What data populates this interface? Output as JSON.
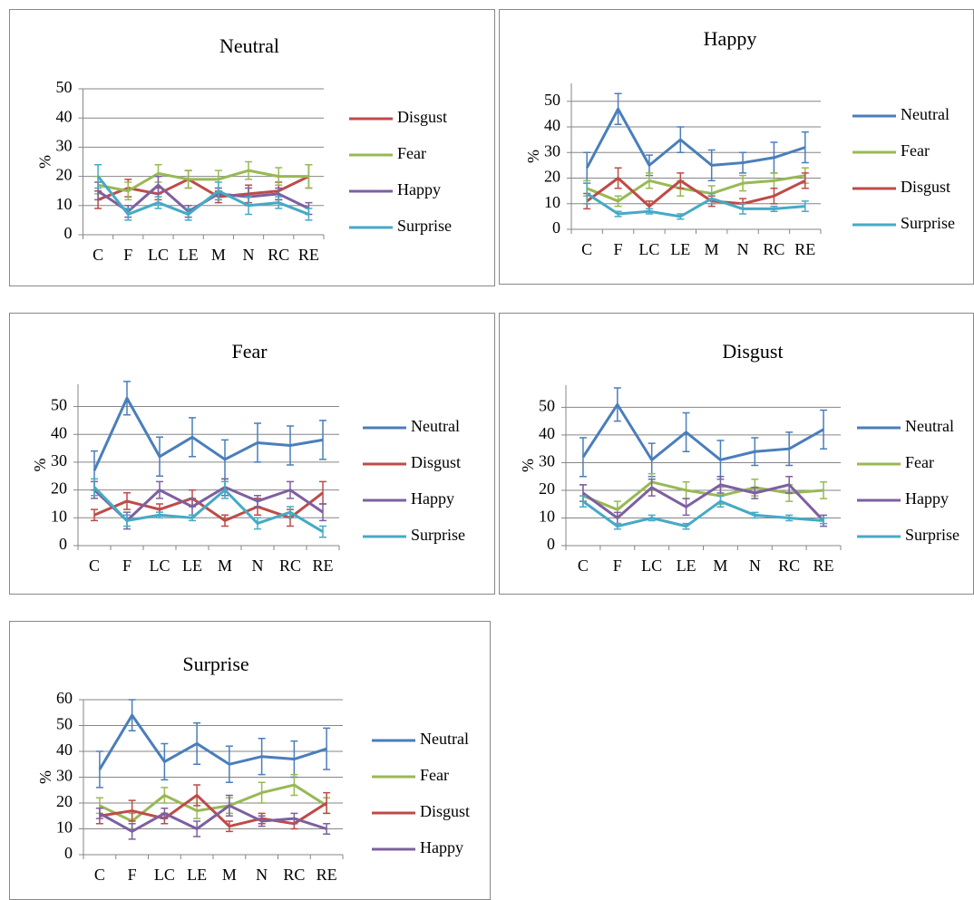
{
  "chart_data": [
    {
      "type": "line",
      "title": "Neutral",
      "ylabel": "%",
      "categories": [
        "C",
        "F",
        "LC",
        "LE",
        "M",
        "N",
        "RC",
        "RE"
      ],
      "ylim": [
        0,
        50
      ],
      "yticks": [
        0,
        10,
        20,
        30,
        40,
        50
      ],
      "grid": true,
      "series": [
        {
          "name": "Disgust",
          "color": "#be4b48",
          "values": [
            12,
            16,
            14,
            19,
            13,
            14,
            15,
            20
          ],
          "errors": [
            3,
            3,
            2,
            3,
            2,
            3,
            3,
            4
          ]
        },
        {
          "name": "Fear",
          "color": "#98b954",
          "values": [
            17,
            15,
            21,
            19,
            19,
            22,
            20,
            20
          ],
          "errors": [
            3,
            3,
            3,
            3,
            3,
            3,
            3,
            4
          ]
        },
        {
          "name": "Happy",
          "color": "#7d60a0",
          "values": [
            15,
            8,
            17,
            8,
            14,
            13,
            14,
            9
          ],
          "errors": [
            3,
            2,
            3,
            2,
            2,
            3,
            2,
            2
          ]
        },
        {
          "name": "Surprise",
          "color": "#46aac5",
          "values": [
            20,
            7,
            11,
            7,
            15,
            10,
            11,
            7
          ],
          "errors": [
            4,
            2,
            2,
            2,
            3,
            3,
            2,
            2
          ]
        }
      ]
    },
    {
      "type": "line",
      "title": "Happy",
      "ylabel": "%",
      "categories": [
        "C",
        "F",
        "LC",
        "LE",
        "M",
        "N",
        "RC",
        "RE"
      ],
      "ylim": [
        0,
        57
      ],
      "yticks": [
        0,
        10,
        20,
        30,
        40,
        50
      ],
      "grid": true,
      "series": [
        {
          "name": "Neutral",
          "color": "#4a7ebb",
          "values": [
            24,
            47,
            25,
            35,
            25,
            26,
            28,
            32
          ],
          "errors": [
            6,
            6,
            4,
            5,
            6,
            4,
            6,
            6
          ]
        },
        {
          "name": "Fear",
          "color": "#98b954",
          "values": [
            16,
            11,
            19,
            16,
            14,
            18,
            19,
            21
          ],
          "errors": [
            3,
            2,
            3,
            3,
            3,
            3,
            3,
            3
          ]
        },
        {
          "name": "Disgust",
          "color": "#be4b48",
          "values": [
            11,
            20,
            9,
            19,
            11,
            10,
            13,
            19
          ],
          "errors": [
            3,
            4,
            2,
            3,
            2,
            2,
            3,
            3
          ]
        },
        {
          "name": "Surprise",
          "color": "#46aac5",
          "values": [
            14,
            6,
            7,
            5,
            12,
            8,
            8,
            9
          ],
          "errors": [
            4,
            1,
            1,
            1,
            2,
            2,
            1,
            2
          ]
        }
      ]
    },
    {
      "type": "line",
      "title": "Fear",
      "ylabel": "%",
      "categories": [
        "C",
        "F",
        "LC",
        "LE",
        "M",
        "N",
        "RC",
        "RE"
      ],
      "ylim": [
        0,
        58
      ],
      "yticks": [
        0,
        10,
        20,
        30,
        40,
        50
      ],
      "grid": true,
      "series": [
        {
          "name": "Neutral",
          "color": "#4a7ebb",
          "values": [
            27,
            53,
            32,
            39,
            31,
            37,
            36,
            38
          ],
          "errors": [
            7,
            6,
            7,
            7,
            7,
            7,
            7,
            7
          ]
        },
        {
          "name": "Disgust",
          "color": "#be4b48",
          "values": [
            11,
            16,
            13,
            17,
            9,
            14,
            10,
            19
          ],
          "errors": [
            2,
            3,
            2,
            3,
            2,
            3,
            3,
            4
          ]
        },
        {
          "name": "Happy",
          "color": "#7d60a0",
          "values": [
            20,
            9,
            20,
            14,
            21,
            16,
            20,
            12
          ],
          "errors": [
            3,
            3,
            3,
            3,
            3,
            2,
            3,
            3
          ]
        },
        {
          "name": "Surprise",
          "color": "#46aac5",
          "values": [
            21,
            9,
            11,
            10,
            20,
            8,
            12,
            5
          ],
          "errors": [
            3,
            2,
            1,
            1,
            3,
            2,
            2,
            2
          ]
        }
      ]
    },
    {
      "type": "line",
      "title": "Disgust",
      "ylabel": "%",
      "categories": [
        "C",
        "F",
        "LC",
        "LE",
        "M",
        "N",
        "RC",
        "RE"
      ],
      "ylim": [
        0,
        58
      ],
      "yticks": [
        0,
        10,
        20,
        30,
        40,
        50
      ],
      "grid": true,
      "series": [
        {
          "name": "Neutral",
          "color": "#4a7ebb",
          "values": [
            32,
            51,
            31,
            41,
            31,
            34,
            35,
            42
          ],
          "errors": [
            7,
            6,
            6,
            7,
            7,
            5,
            6,
            7
          ]
        },
        {
          "name": "Fear",
          "color": "#98b954",
          "values": [
            18,
            13,
            23,
            20,
            18,
            21,
            19,
            20
          ],
          "errors": [
            4,
            3,
            3,
            3,
            3,
            3,
            3,
            3
          ]
        },
        {
          "name": "Happy",
          "color": "#7d60a0",
          "values": [
            19,
            10,
            21,
            14,
            22,
            19,
            22,
            9
          ],
          "errors": [
            3,
            2,
            3,
            3,
            3,
            2,
            3,
            2
          ]
        },
        {
          "name": "Surprise",
          "color": "#46aac5",
          "values": [
            16,
            7,
            10,
            7,
            16,
            11,
            10,
            9
          ],
          "errors": [
            2,
            1,
            1,
            1,
            2,
            1,
            1,
            1
          ]
        }
      ]
    },
    {
      "type": "line",
      "title": "Surprise",
      "ylabel": "%",
      "categories": [
        "C",
        "F",
        "LC",
        "LE",
        "M",
        "N",
        "RC",
        "RE"
      ],
      "ylim": [
        0,
        60
      ],
      "yticks": [
        0,
        10,
        20,
        30,
        40,
        50,
        60
      ],
      "grid": true,
      "series": [
        {
          "name": "Neutral",
          "color": "#4a7ebb",
          "values": [
            33,
            54,
            36,
            43,
            35,
            38,
            37,
            41
          ],
          "errors": [
            7,
            6,
            7,
            8,
            7,
            7,
            7,
            8
          ]
        },
        {
          "name": "Fear",
          "color": "#98b954",
          "values": [
            19,
            13,
            23,
            17,
            19,
            24,
            27,
            19
          ],
          "errors": [
            3,
            3,
            3,
            3,
            3,
            4,
            4,
            3
          ]
        },
        {
          "name": "Disgust",
          "color": "#be4b48",
          "values": [
            15,
            17,
            14,
            23,
            11,
            14,
            12,
            20
          ],
          "errors": [
            3,
            4,
            2,
            4,
            2,
            2,
            2,
            4
          ]
        },
        {
          "name": "Happy",
          "color": "#7d60a0",
          "values": [
            16,
            9,
            16,
            10,
            19,
            13,
            14,
            10
          ],
          "errors": [
            2,
            3,
            2,
            3,
            4,
            2,
            2,
            2
          ]
        }
      ]
    }
  ]
}
